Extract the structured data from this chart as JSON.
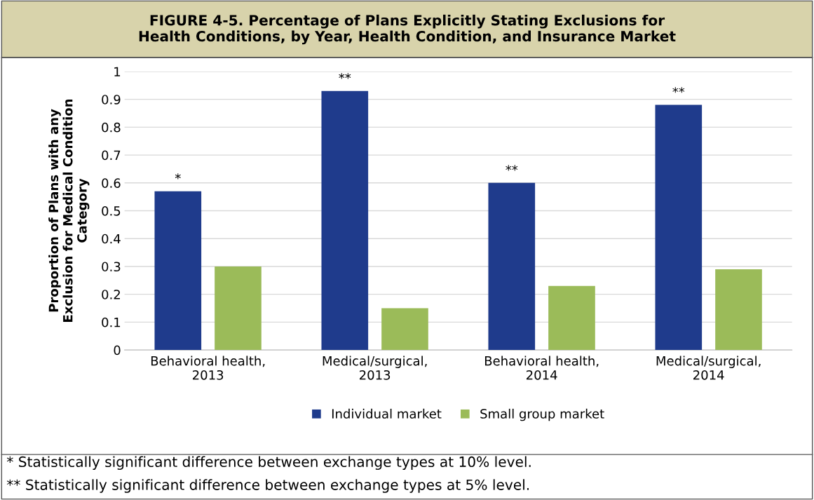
{
  "chart_data": {
    "type": "bar",
    "title": "FIGURE 4-5. Percentage of Plans Explicitly Stating Exclusions for\nHealth Conditions, by Year, Health Condition, and Insurance Market",
    "ylabel": "Proportion of Plans with any\nExclusion for Medical Condition\nCategory",
    "categories": [
      "Behavioral health,\n2013",
      "Medical/surgical,\n2013",
      "Behavioral health,\n2014",
      "Medical/surgical,\n2014"
    ],
    "series": [
      {
        "name": "Individual market",
        "color": "#1f3b8c",
        "values": [
          0.57,
          0.93,
          0.6,
          0.88
        ],
        "value_labels": [
          "*",
          "**",
          "**",
          "**"
        ]
      },
      {
        "name": "Small group market",
        "color": "#9bbb59",
        "values": [
          0.3,
          0.15,
          0.23,
          0.29
        ]
      }
    ],
    "ylim": [
      0,
      1
    ],
    "yticks": [
      0,
      0.1,
      0.2,
      0.3,
      0.4,
      0.5,
      0.6,
      0.7,
      0.8,
      0.9,
      1
    ],
    "grid": "y",
    "legend": "bottom",
    "annotations": [
      "* Statistically significant difference between exchange types at 10% level.",
      "** Statistically significant difference between exchange types at 5% level."
    ]
  }
}
